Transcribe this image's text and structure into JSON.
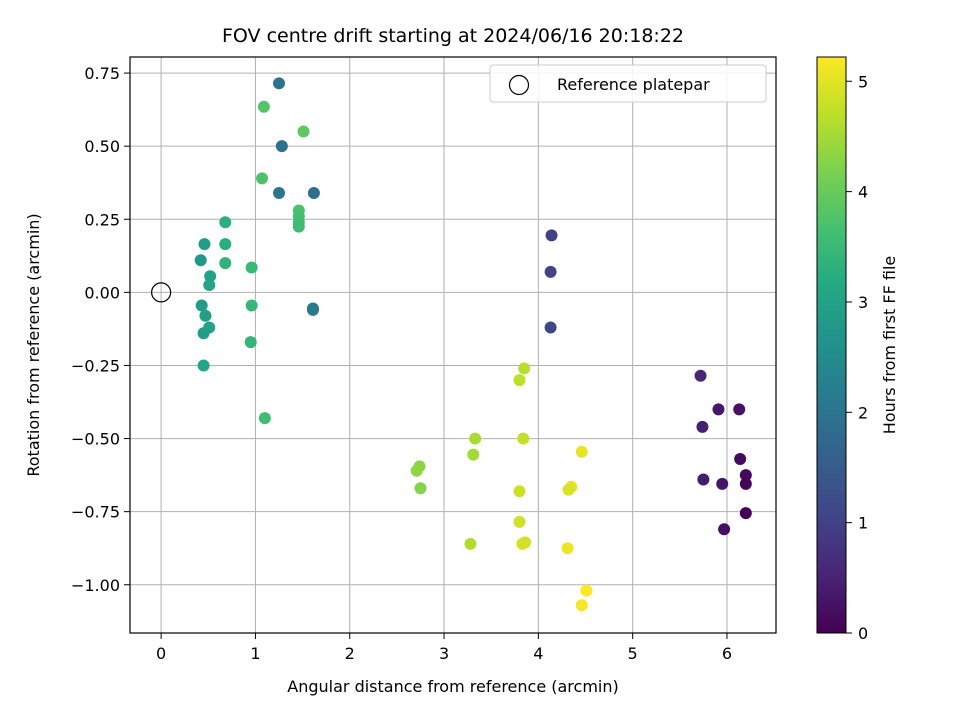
{
  "chart_data": {
    "type": "scatter",
    "title": "FOV centre drift starting at 2024/06/16 20:18:22",
    "xlabel": "Angular distance from reference (arcmin)",
    "ylabel": "Rotation from reference (arcmin)",
    "xlim": [
      -0.33,
      6.52
    ],
    "ylim": [
      -1.165,
      0.805
    ],
    "xticks": [
      0,
      1,
      2,
      3,
      4,
      5,
      6
    ],
    "xtick_labels": [
      "0",
      "1",
      "2",
      "3",
      "4",
      "5",
      "6"
    ],
    "yticks": [
      0.75,
      0.5,
      0.25,
      0.0,
      -0.25,
      -0.5,
      -0.75,
      -1.0
    ],
    "ytick_labels": [
      "0.75",
      "0.50",
      "0.25",
      "0.00",
      "−0.25",
      "−0.50",
      "−0.75",
      "−1.00"
    ],
    "grid": true,
    "colormap": "viridis",
    "colorbar": {
      "label": "Hours from first FF file",
      "range": [
        0,
        5.22
      ],
      "ticks": [
        0,
        1,
        2,
        3,
        4,
        5
      ],
      "tick_labels": [
        "0",
        "1",
        "2",
        "3",
        "4",
        "5"
      ]
    },
    "legend": {
      "position": "upper-right",
      "entries": [
        {
          "label": "Reference platepar",
          "marker": "open-circle"
        }
      ]
    },
    "reference_point": {
      "x": 0.0,
      "y": 0.0,
      "label": "Reference platepar"
    },
    "points": [
      {
        "x": 5.72,
        "y": -0.285,
        "c": 0.55
      },
      {
        "x": 5.91,
        "y": -0.4,
        "c": 0.35
      },
      {
        "x": 6.13,
        "y": -0.4,
        "c": 0.25
      },
      {
        "x": 5.74,
        "y": -0.46,
        "c": 0.45
      },
      {
        "x": 6.14,
        "y": -0.57,
        "c": 0.15
      },
      {
        "x": 6.2,
        "y": -0.625,
        "c": 0.1
      },
      {
        "x": 5.75,
        "y": -0.64,
        "c": 0.4
      },
      {
        "x": 5.95,
        "y": -0.655,
        "c": 0.3
      },
      {
        "x": 6.2,
        "y": -0.655,
        "c": 0.05
      },
      {
        "x": 6.2,
        "y": -0.755,
        "c": 0.02
      },
      {
        "x": 5.97,
        "y": -0.81,
        "c": 0.2
      },
      {
        "x": 4.14,
        "y": 0.195,
        "c": 1.0
      },
      {
        "x": 4.13,
        "y": 0.07,
        "c": 1.05
      },
      {
        "x": 4.13,
        "y": -0.12,
        "c": 1.1
      },
      {
        "x": 1.25,
        "y": 0.715,
        "c": 2.0
      },
      {
        "x": 1.28,
        "y": 0.5,
        "c": 1.95
      },
      {
        "x": 1.25,
        "y": 0.34,
        "c": 2.05
      },
      {
        "x": 1.62,
        "y": 0.34,
        "c": 1.9
      },
      {
        "x": 1.61,
        "y": -0.055,
        "c": 2.1
      },
      {
        "x": 1.61,
        "y": -0.06,
        "c": 2.15
      },
      {
        "x": 1.09,
        "y": 0.635,
        "c": 3.8
      },
      {
        "x": 1.51,
        "y": 0.55,
        "c": 3.9
      },
      {
        "x": 1.07,
        "y": 0.39,
        "c": 3.75
      },
      {
        "x": 1.46,
        "y": 0.28,
        "c": 3.7
      },
      {
        "x": 1.46,
        "y": 0.26,
        "c": 3.65
      },
      {
        "x": 1.46,
        "y": 0.24,
        "c": 3.6
      },
      {
        "x": 1.46,
        "y": 0.225,
        "c": 3.55
      },
      {
        "x": 0.68,
        "y": 0.24,
        "c": 3.3
      },
      {
        "x": 0.46,
        "y": 0.165,
        "c": 2.9
      },
      {
        "x": 0.68,
        "y": 0.165,
        "c": 3.25
      },
      {
        "x": 0.42,
        "y": 0.11,
        "c": 2.8
      },
      {
        "x": 0.68,
        "y": 0.1,
        "c": 3.35
      },
      {
        "x": 0.96,
        "y": 0.085,
        "c": 3.5
      },
      {
        "x": 0.52,
        "y": 0.055,
        "c": 3.0
      },
      {
        "x": 0.51,
        "y": 0.025,
        "c": 3.05
      },
      {
        "x": 0.43,
        "y": -0.045,
        "c": 2.85
      },
      {
        "x": 0.96,
        "y": -0.045,
        "c": 3.45
      },
      {
        "x": 0.47,
        "y": -0.08,
        "c": 2.95
      },
      {
        "x": 0.51,
        "y": -0.12,
        "c": 3.0
      },
      {
        "x": 0.45,
        "y": -0.14,
        "c": 2.9
      },
      {
        "x": 0.95,
        "y": -0.17,
        "c": 3.4
      },
      {
        "x": 0.45,
        "y": -0.25,
        "c": 3.1
      },
      {
        "x": 1.1,
        "y": -0.43,
        "c": 3.6
      },
      {
        "x": 3.85,
        "y": -0.26,
        "c": 4.65
      },
      {
        "x": 3.8,
        "y": -0.3,
        "c": 4.7
      },
      {
        "x": 3.33,
        "y": -0.5,
        "c": 4.55
      },
      {
        "x": 3.84,
        "y": -0.5,
        "c": 4.75
      },
      {
        "x": 2.74,
        "y": -0.595,
        "c": 4.3
      },
      {
        "x": 2.71,
        "y": -0.61,
        "c": 4.35
      },
      {
        "x": 3.31,
        "y": -0.555,
        "c": 4.5
      },
      {
        "x": 4.46,
        "y": -0.545,
        "c": 5.05
      },
      {
        "x": 2.75,
        "y": -0.67,
        "c": 4.25
      },
      {
        "x": 3.8,
        "y": -0.68,
        "c": 4.8
      },
      {
        "x": 4.35,
        "y": -0.665,
        "c": 5.0
      },
      {
        "x": 4.32,
        "y": -0.675,
        "c": 4.95
      },
      {
        "x": 3.8,
        "y": -0.785,
        "c": 4.85
      },
      {
        "x": 3.28,
        "y": -0.86,
        "c": 4.6
      },
      {
        "x": 3.83,
        "y": -0.86,
        "c": 4.9
      },
      {
        "x": 3.86,
        "y": -0.855,
        "c": 4.88
      },
      {
        "x": 4.31,
        "y": -0.875,
        "c": 5.1
      },
      {
        "x": 4.51,
        "y": -1.02,
        "c": 5.2
      },
      {
        "x": 4.46,
        "y": -1.07,
        "c": 5.18
      }
    ]
  }
}
